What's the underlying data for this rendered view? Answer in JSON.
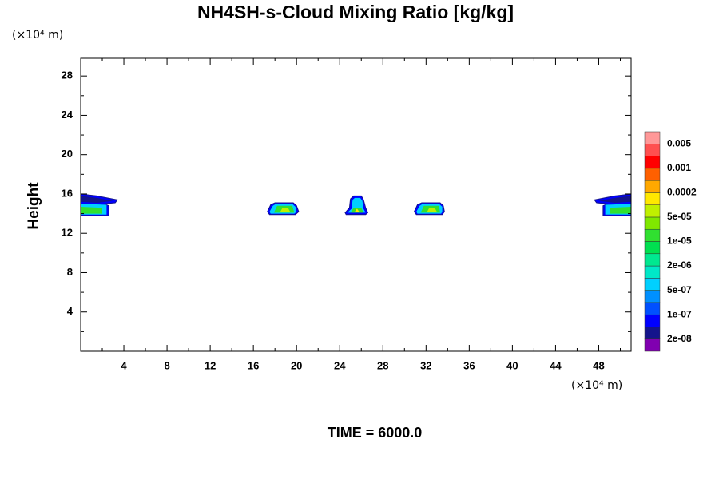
{
  "chart_data": {
    "type": "contour",
    "title": "NH4SH-s-Cloud Mixing Ratio [kg/kg]",
    "y_axis_unit": "(×10⁴ m)",
    "x_axis_unit": "(×10⁴ m)",
    "ylabel": "Height",
    "footer": "TIME = 6000.0",
    "xlim": [
      0,
      51
    ],
    "ylim": [
      0,
      29.8
    ],
    "xticks": [
      4,
      8,
      12,
      16,
      20,
      24,
      28,
      32,
      36,
      40,
      44,
      48
    ],
    "yticks": [
      4,
      8,
      12,
      16,
      20,
      24,
      28
    ],
    "colorbar": {
      "colors": [
        "#8000b0",
        "#14148c",
        "#0000ff",
        "#0050ff",
        "#0090ff",
        "#00d0ff",
        "#00e8c8",
        "#00e890",
        "#00e050",
        "#30e030",
        "#80e800",
        "#c0f000",
        "#ffe800",
        "#ffa800",
        "#ff6000",
        "#ff0000",
        "#ff5050",
        "#ff9898"
      ],
      "ticks": [
        {
          "value": 2e-08,
          "label": "2e-08"
        },
        {
          "value": 1e-07,
          "label": "1e-07"
        },
        {
          "value": 5e-07,
          "label": "5e-07"
        },
        {
          "value": 2e-06,
          "label": "2e-06"
        },
        {
          "value": 1e-05,
          "label": "1e-05"
        },
        {
          "value": 5e-05,
          "label": "5e-05"
        },
        {
          "value": 0.0002,
          "label": "0.0002"
        },
        {
          "value": 0.001,
          "label": "0.001"
        },
        {
          "value": 0.005,
          "label": "0.005"
        }
      ]
    },
    "contours": [
      {
        "color": "#0000ff",
        "x": [
          0,
          1.5,
          3.4,
          3.2,
          2.2,
          2.6,
          2.6,
          0
        ],
        "y": [
          16.0,
          15.8,
          15.4,
          15.1,
          15.0,
          14.8,
          13.8,
          13.8
        ]
      },
      {
        "color": "#14148c",
        "x": [
          0,
          1.5,
          3.0,
          1.5,
          0
        ],
        "y": [
          15.8,
          15.6,
          15.3,
          15.1,
          15.2
        ]
      },
      {
        "color": "#00d0ff",
        "x": [
          0,
          2.4,
          2.4,
          0
        ],
        "y": [
          15.0,
          14.9,
          13.9,
          13.9
        ]
      },
      {
        "color": "#30e030",
        "x": [
          0,
          2.0,
          2.0,
          0
        ],
        "y": [
          14.7,
          14.6,
          14.0,
          14.0
        ]
      },
      {
        "color": "#0000ff",
        "x": [
          17.3,
          17.6,
          18.0,
          19.7,
          20.0,
          20.2,
          19.9,
          17.5
        ],
        "y": [
          14.2,
          14.9,
          15.1,
          15.1,
          14.8,
          14.2,
          13.9,
          13.9
        ]
      },
      {
        "color": "#00d0ff",
        "x": [
          17.5,
          17.8,
          18.1,
          19.6,
          19.9,
          20.0,
          19.8,
          17.6
        ],
        "y": [
          14.2,
          14.8,
          15.0,
          15.0,
          14.7,
          14.2,
          14.0,
          14.0
        ]
      },
      {
        "color": "#30e030",
        "x": [
          17.9,
          18.2,
          19.6,
          19.8
        ],
        "y": [
          14.1,
          14.8,
          14.8,
          14.1
        ]
      },
      {
        "color": "#c0f000",
        "x": [
          18.5,
          18.7,
          19.2,
          19.4
        ],
        "y": [
          14.2,
          14.6,
          14.6,
          14.2
        ]
      },
      {
        "color": "#0000ff",
        "x": [
          24.5,
          24.9,
          25.0,
          25.3,
          26.0,
          26.2,
          26.4,
          26.6,
          26.4,
          24.6
        ],
        "y": [
          14.1,
          14.6,
          15.5,
          15.8,
          15.8,
          15.4,
          14.6,
          14.1,
          13.9,
          13.9
        ]
      },
      {
        "color": "#00d0ff",
        "x": [
          24.7,
          25.1,
          25.2,
          25.4,
          25.9,
          26.1,
          26.2,
          26.4
        ],
        "y": [
          14.1,
          14.5,
          15.4,
          15.6,
          15.6,
          15.3,
          14.5,
          14.1
        ]
      },
      {
        "color": "#30e030",
        "x": [
          25.0,
          25.3,
          26.0,
          26.2
        ],
        "y": [
          14.1,
          14.6,
          14.6,
          14.1
        ]
      },
      {
        "color": "#ffe800",
        "x": [
          25.4,
          25.6,
          25.8
        ],
        "y": [
          14.2,
          14.5,
          14.2
        ]
      },
      {
        "color": "#0000ff",
        "x": [
          30.9,
          31.2,
          31.6,
          33.3,
          33.6,
          33.7,
          33.5,
          31.1
        ],
        "y": [
          14.2,
          14.9,
          15.1,
          15.1,
          14.8,
          14.2,
          13.9,
          13.9
        ]
      },
      {
        "color": "#00d0ff",
        "x": [
          31.1,
          31.4,
          31.7,
          33.2,
          33.5,
          33.5,
          33.4,
          31.2
        ],
        "y": [
          14.2,
          14.8,
          15.0,
          15.0,
          14.7,
          14.2,
          14.0,
          14.0
        ]
      },
      {
        "color": "#30e030",
        "x": [
          31.5,
          31.8,
          33.2,
          33.3
        ],
        "y": [
          14.1,
          14.8,
          14.8,
          14.1
        ]
      },
      {
        "color": "#c0f000",
        "x": [
          32.1,
          32.3,
          32.8,
          33.0
        ],
        "y": [
          14.2,
          14.6,
          14.6,
          14.2
        ]
      },
      {
        "color": "#0000ff",
        "x": [
          51,
          49.5,
          47.6,
          47.8,
          48.8,
          48.4,
          48.4,
          51
        ],
        "y": [
          16.0,
          15.8,
          15.4,
          15.1,
          15.0,
          14.8,
          13.8,
          13.8
        ]
      },
      {
        "color": "#14148c",
        "x": [
          51,
          49.5,
          48.0,
          49.5,
          51
        ],
        "y": [
          15.8,
          15.6,
          15.3,
          15.1,
          15.2
        ]
      },
      {
        "color": "#00d0ff",
        "x": [
          51,
          48.6,
          48.6,
          51
        ],
        "y": [
          15.0,
          14.9,
          13.9,
          13.9
        ]
      },
      {
        "color": "#30e030",
        "x": [
          51,
          49.0,
          49.0,
          51
        ],
        "y": [
          14.7,
          14.6,
          14.0,
          14.0
        ]
      }
    ]
  }
}
